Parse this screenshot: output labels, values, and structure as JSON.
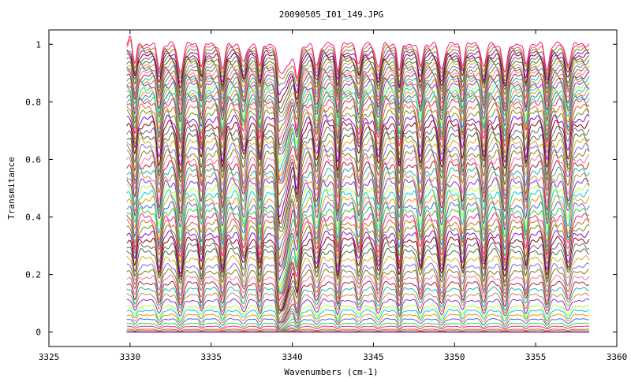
{
  "chart_data": {
    "type": "line",
    "title": "20090505_I01_149.JPG",
    "xlabel": "Wavenumbers (cm-1)",
    "ylabel": "Transmitance",
    "xlim": [
      3325,
      3360
    ],
    "ylim": [
      -0.05,
      1.05
    ],
    "xticks": [
      3325,
      3330,
      3335,
      3340,
      3345,
      3350,
      3355,
      3360
    ],
    "yticks": [
      0,
      0.2,
      0.4,
      0.6,
      0.8,
      1
    ],
    "ytick_labels": [
      "0",
      "0.2",
      "0.4",
      "0.6",
      "0.8",
      "1"
    ],
    "grid": false,
    "legend": "none",
    "x_range_data": [
      3329.8,
      3358.3
    ],
    "deep_band_center": 3339.2,
    "absorption_lines": [
      3330.3,
      3331.8,
      3333.1,
      3334.4,
      3335.7,
      3337.0,
      3338.0,
      3340.3,
      3341.5,
      3342.8,
      3344.1,
      3345.3,
      3346.6,
      3347.9,
      3349.2,
      3350.5,
      3351.8,
      3353.1,
      3354.4,
      3355.7,
      3357.0
    ],
    "series_baselines": [
      0.0,
      0.0,
      0.005,
      0.01,
      0.02,
      0.03,
      0.045,
      0.06,
      0.075,
      0.09,
      0.11,
      0.13,
      0.15,
      0.17,
      0.19,
      0.21,
      0.23,
      0.255,
      0.28,
      0.3,
      0.32,
      0.34,
      0.36,
      0.38,
      0.4,
      0.42,
      0.44,
      0.46,
      0.48,
      0.5,
      0.52,
      0.54,
      0.56,
      0.58,
      0.6,
      0.62,
      0.64,
      0.66,
      0.68,
      0.7,
      0.72,
      0.74,
      0.76,
      0.78,
      0.8,
      0.81,
      0.82,
      0.83,
      0.84,
      0.85,
      0.86,
      0.87,
      0.88,
      0.89,
      0.9,
      0.91,
      0.92,
      0.93,
      0.94,
      0.95,
      0.96,
      0.97,
      0.98,
      0.99,
      1.0
    ],
    "palette": [
      "#8b0000",
      "#9400d3",
      "#6b8e23",
      "#d2691e",
      "#ff1493",
      "#32cd32",
      "#4169e1",
      "#ff8c00",
      "#00ced1",
      "#adff2f",
      "#8a2be2",
      "#cd853f",
      "#20b2aa",
      "#a52a2a",
      "#ff69b4",
      "#808000",
      "#7b68ee",
      "#daa520",
      "#556b2f",
      "#696969"
    ]
  }
}
